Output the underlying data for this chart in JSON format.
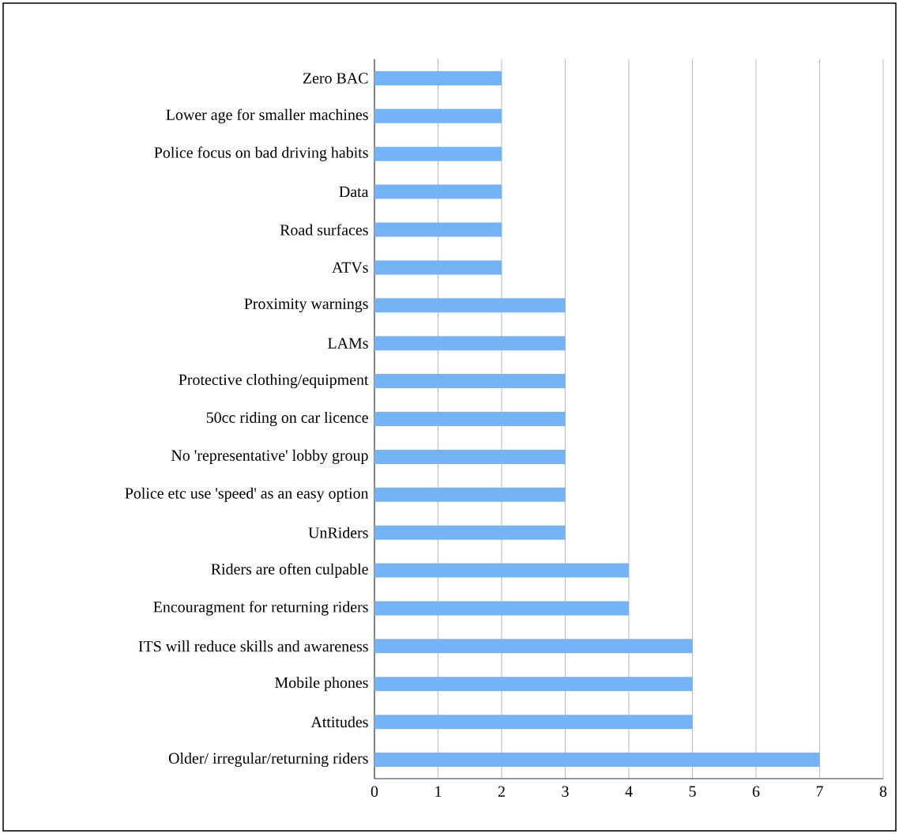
{
  "chart_data": {
    "type": "bar",
    "orientation": "horizontal",
    "categories": [
      "Zero BAC",
      "Lower age for smaller machines",
      "Police focus on bad driving habits",
      "Data",
      "Road surfaces",
      "ATVs",
      "Proximity warnings",
      "LAMs",
      "Protective clothing/equipment",
      "50cc riding on car licence",
      "No 'representative' lobby group",
      "Police etc use 'speed' as an easy option",
      "UnRiders",
      "Riders are often culpable",
      "Encouragment for returning riders",
      "ITS will reduce skills and awareness",
      "Mobile phones",
      "Attitudes",
      "Older/ irregular/returning riders"
    ],
    "values": [
      2,
      2,
      2,
      2,
      2,
      2,
      3,
      3,
      3,
      3,
      3,
      3,
      3,
      4,
      4,
      5,
      5,
      5,
      7
    ],
    "color": "#74b4f6",
    "xlim": [
      0,
      8
    ],
    "xticks": [
      0,
      1,
      2,
      3,
      4,
      5,
      6,
      7,
      8
    ],
    "grid": "x"
  }
}
